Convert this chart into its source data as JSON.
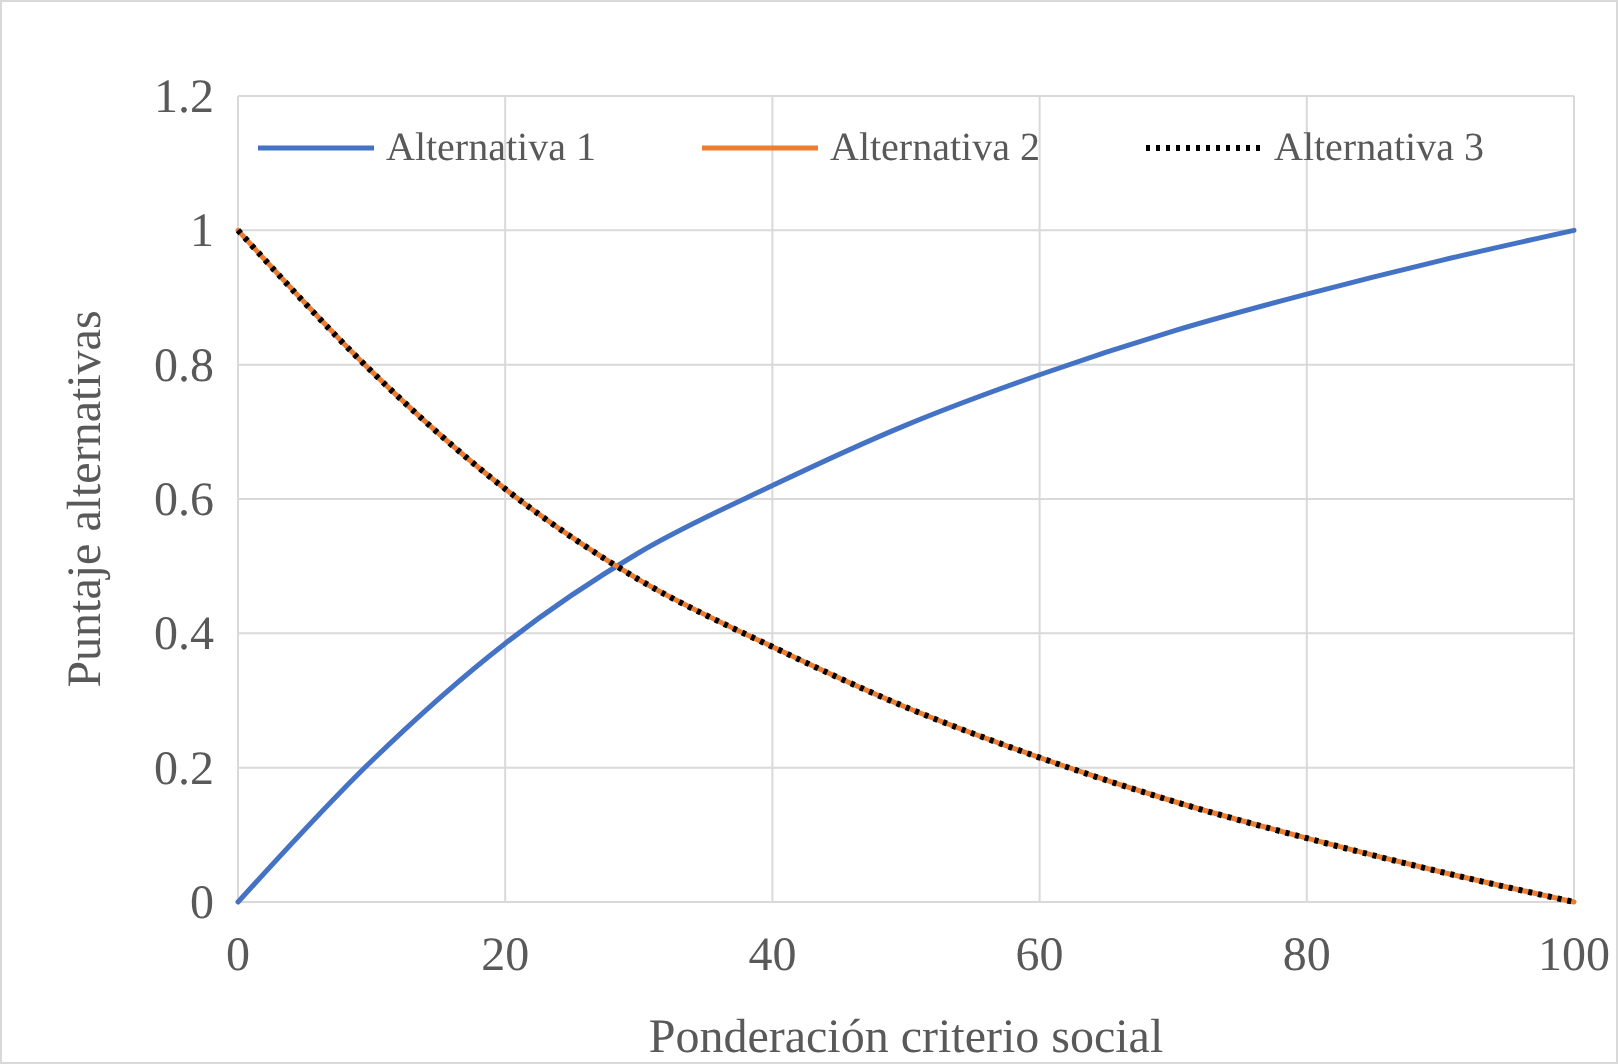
{
  "chart_data": {
    "type": "line",
    "xlabel": "Ponderación criterio social",
    "ylabel": "Puntaje alternativas",
    "x": [
      0,
      10,
      20,
      30,
      40,
      50,
      60,
      70,
      80,
      90,
      100
    ],
    "series": [
      {
        "name": "Alternativa 1",
        "color": "#4472c4",
        "line_style": "solid",
        "values": [
          0,
          0.21,
          0.385,
          0.52,
          0.62,
          0.71,
          0.785,
          0.85,
          0.905,
          0.955,
          1
        ]
      },
      {
        "name": "Alternativa 2",
        "color": "#ed7d31",
        "line_style": "solid",
        "values": [
          1,
          0.79,
          0.615,
          0.48,
          0.38,
          0.29,
          0.215,
          0.15,
          0.095,
          0.045,
          0
        ]
      },
      {
        "name": "Alternativa 3",
        "color": "#000000",
        "line_style": "dotted",
        "values": [
          1,
          0.79,
          0.615,
          0.48,
          0.38,
          0.29,
          0.215,
          0.15,
          0.095,
          0.045,
          0
        ]
      }
    ],
    "xlim": [
      0,
      100
    ],
    "xticks": [
      0,
      20,
      40,
      60,
      80,
      100
    ],
    "ylim": [
      0,
      1.2
    ],
    "yticks": [
      0,
      0.2,
      0.4,
      0.6,
      0.8,
      1,
      1.2
    ],
    "grid": true,
    "legend": "top"
  }
}
